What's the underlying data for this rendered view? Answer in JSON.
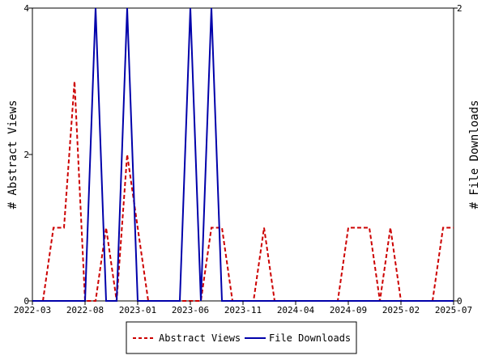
{
  "chart_data": {
    "type": "line",
    "x_ticks": [
      "2022-03",
      "2022-08",
      "2023-01",
      "2023-06",
      "2023-11",
      "2024-04",
      "2024-09",
      "2025-02",
      "2025-07"
    ],
    "xlim": [
      "2022-03",
      "2025-07"
    ],
    "ylabel": "# Abstract Views",
    "ylabel_right": "# File Downloads",
    "ylim": [
      0,
      4
    ],
    "ylim_right": [
      0,
      2
    ],
    "yticks_left": [
      "0",
      "2",
      "4"
    ],
    "yticks_right": [
      "0",
      "2"
    ],
    "grid": false,
    "legend_position": "bottom",
    "series": [
      {
        "name": "Abstract Views",
        "axis": "left",
        "color": "#cc0000",
        "style": "dashed",
        "x": [
          "2022-04",
          "2022-05",
          "2022-06",
          "2022-07",
          "2022-08",
          "2022-09",
          "2022-10",
          "2022-11",
          "2022-12",
          "2023-01",
          "2023-02",
          "2023-03",
          "2023-04",
          "2023-05",
          "2023-06",
          "2023-07",
          "2023-08",
          "2023-09",
          "2023-10",
          "2023-11",
          "2023-12",
          "2024-01",
          "2024-02",
          "2024-03",
          "2024-04",
          "2024-05",
          "2024-06",
          "2024-07",
          "2024-08",
          "2024-09",
          "2024-10",
          "2024-11",
          "2024-12",
          "2025-01",
          "2025-02",
          "2025-03",
          "2025-04",
          "2025-05",
          "2025-06",
          "2025-07"
        ],
        "values": [
          0,
          1,
          1,
          3,
          0,
          0,
          1,
          0,
          2,
          1,
          0,
          0,
          0,
          0,
          0,
          0,
          1,
          1,
          0,
          0,
          0,
          1,
          0,
          0,
          0,
          0,
          0,
          0,
          0,
          1,
          1,
          1,
          0,
          1,
          0,
          0,
          0,
          0,
          1,
          1
        ]
      },
      {
        "name": "File Downloads",
        "axis": "right",
        "color": "#0000aa",
        "style": "solid",
        "x": [
          "2022-03",
          "2022-04",
          "2022-05",
          "2022-06",
          "2022-07",
          "2022-08",
          "2022-09",
          "2022-10",
          "2022-11",
          "2022-12",
          "2023-01",
          "2023-02",
          "2023-03",
          "2023-04",
          "2023-05",
          "2023-06",
          "2023-07",
          "2023-08",
          "2023-09",
          "2023-10",
          "2023-11",
          "2023-12",
          "2024-01",
          "2024-02",
          "2024-03",
          "2024-04",
          "2024-05",
          "2024-06",
          "2024-07",
          "2024-08",
          "2024-09",
          "2024-10",
          "2024-11",
          "2024-12",
          "2025-01",
          "2025-02",
          "2025-03",
          "2025-04",
          "2025-05",
          "2025-06",
          "2025-07"
        ],
        "values": [
          0,
          0,
          0,
          0,
          0,
          0,
          2,
          0,
          0,
          2,
          0,
          0,
          0,
          0,
          0,
          2,
          0,
          2,
          0,
          0,
          0,
          0,
          0,
          0,
          0,
          0,
          0,
          0,
          0,
          0,
          0,
          0,
          0,
          0,
          0,
          0,
          0,
          0,
          0,
          0,
          0
        ]
      }
    ]
  }
}
